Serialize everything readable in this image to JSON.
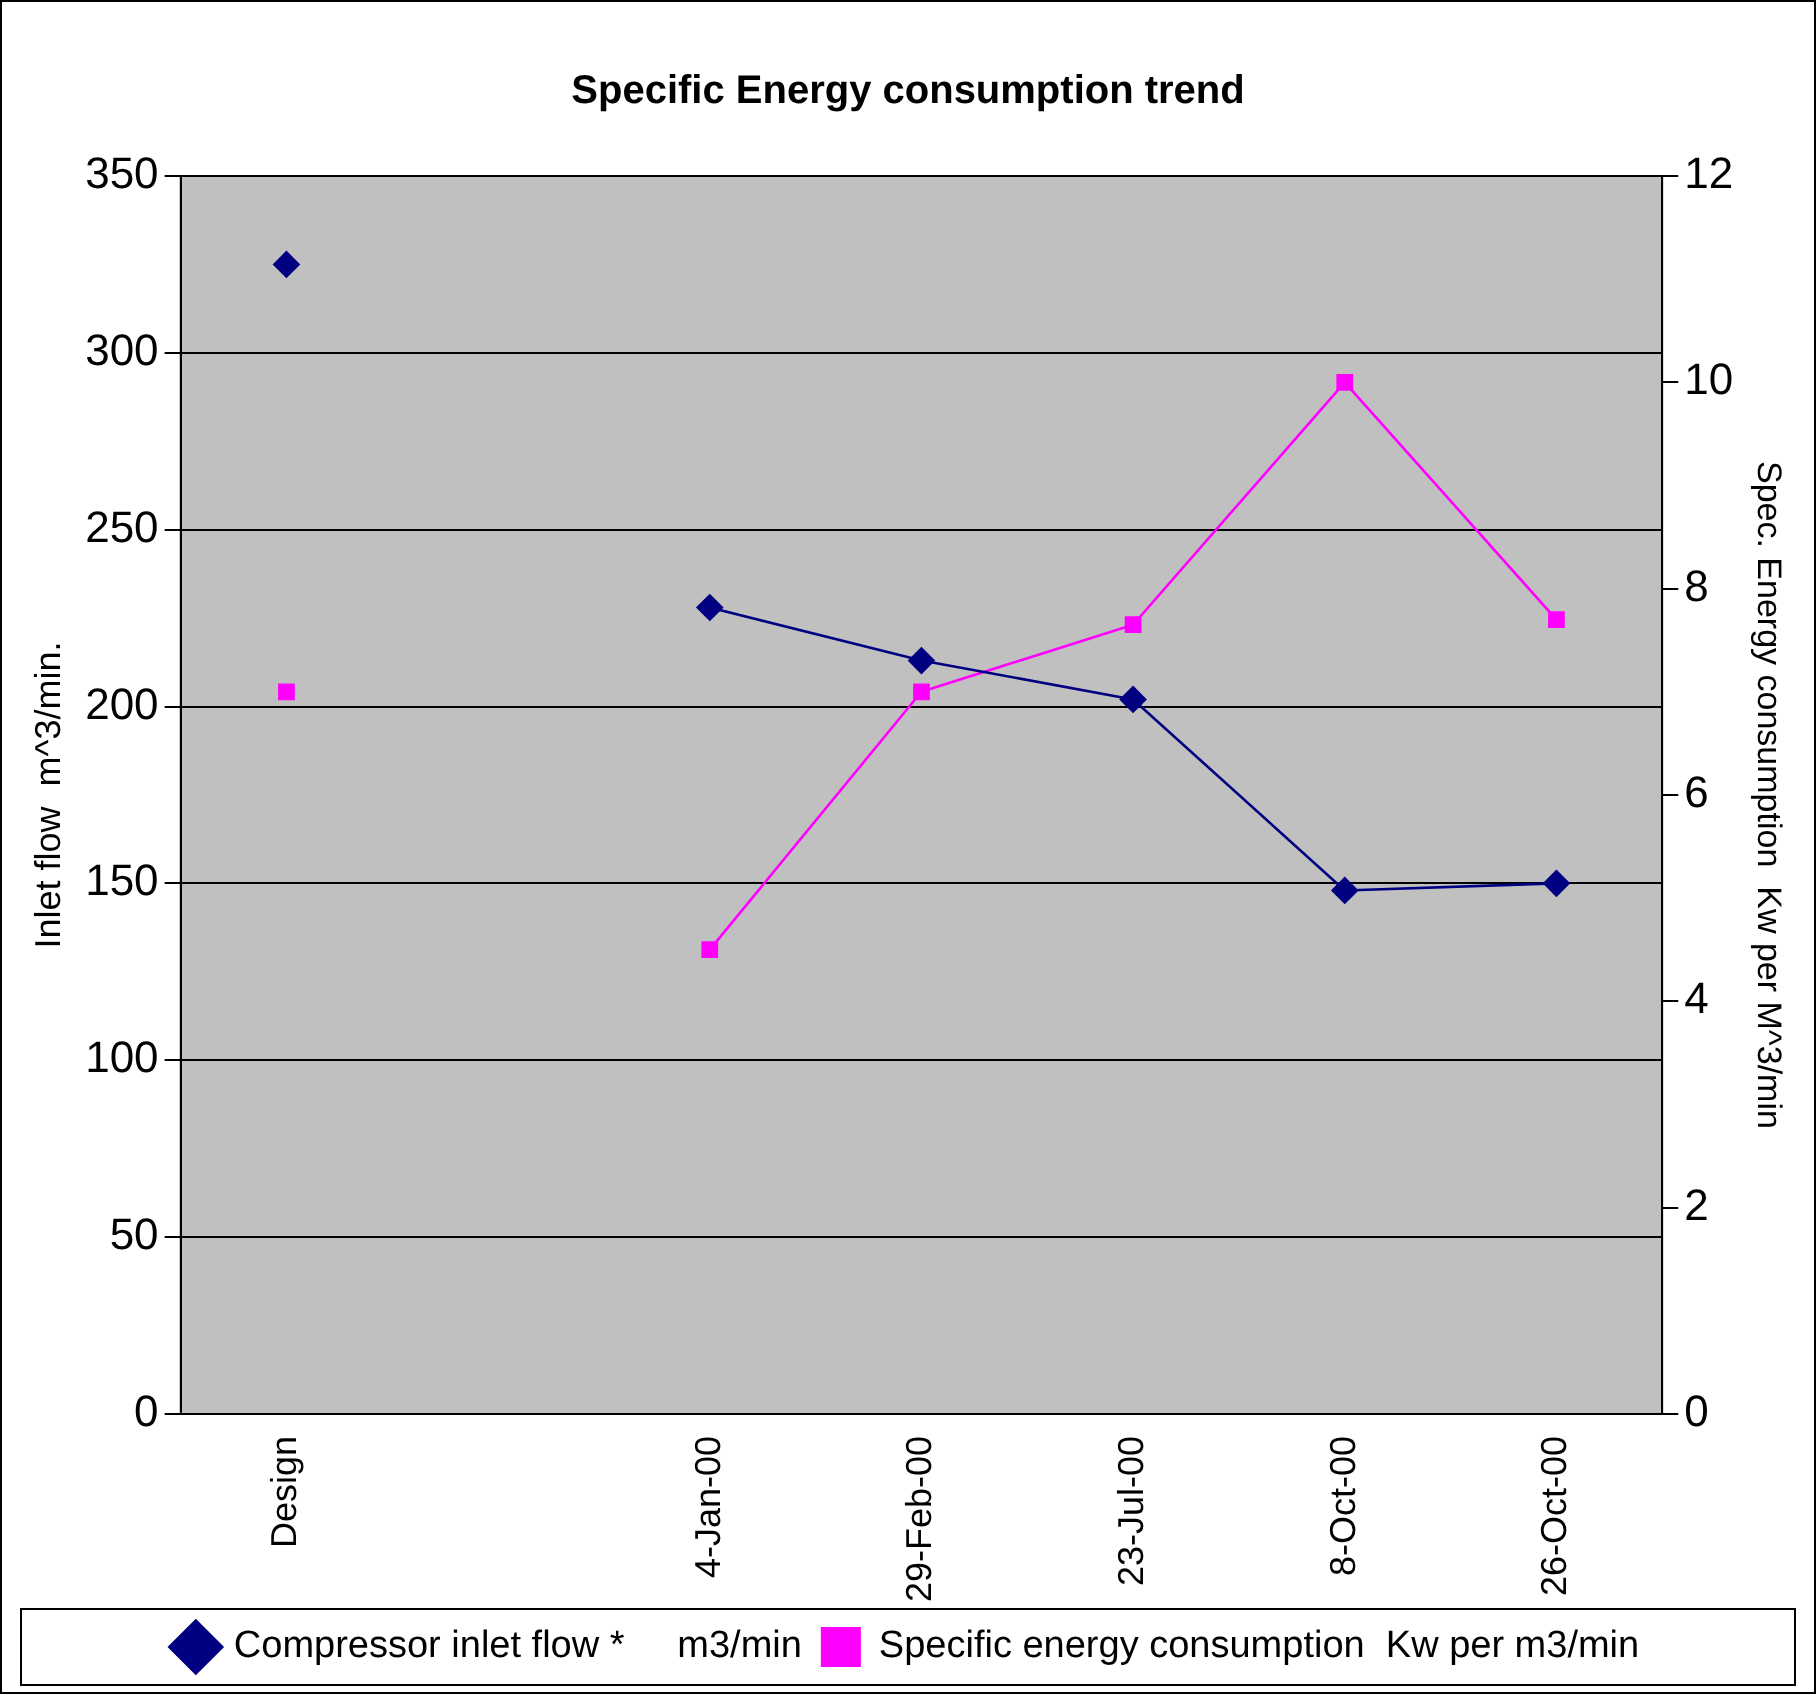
{
  "chart_data": {
    "type": "line",
    "title": "Specific Energy consumption trend",
    "ylabel": "Inlet flow  m^3/min.",
    "y2label": "Spec. Energy consumption  Kw per M^3/min",
    "categories": [
      "Design",
      null,
      "4-Jan-00",
      "29-Feb-00",
      "23-Jul-00",
      "8-Oct-00",
      "26-Oct-00"
    ],
    "series": [
      {
        "name": "Compressor inlet flow *     m3/min",
        "color": "#000080",
        "marker": "diamond",
        "values": [
          325,
          null,
          228,
          213,
          202,
          148,
          150
        ]
      },
      {
        "name": "Specific energy consumption  Kw per m3/min",
        "color": "#ff00ff",
        "marker": "square",
        "axis": "y2",
        "values": [
          7.0,
          null,
          4.5,
          7.0,
          7.65,
          10.0,
          7.7
        ]
      }
    ],
    "ylim": [
      0,
      350
    ],
    "yticks": [
      0,
      50,
      100,
      150,
      200,
      250,
      300,
      350
    ],
    "y2lim": [
      0,
      12
    ],
    "y2ticks": [
      0,
      2,
      4,
      6,
      8,
      10,
      12
    ],
    "grid": "y",
    "legend": "bottom",
    "line_style": "solid"
  }
}
